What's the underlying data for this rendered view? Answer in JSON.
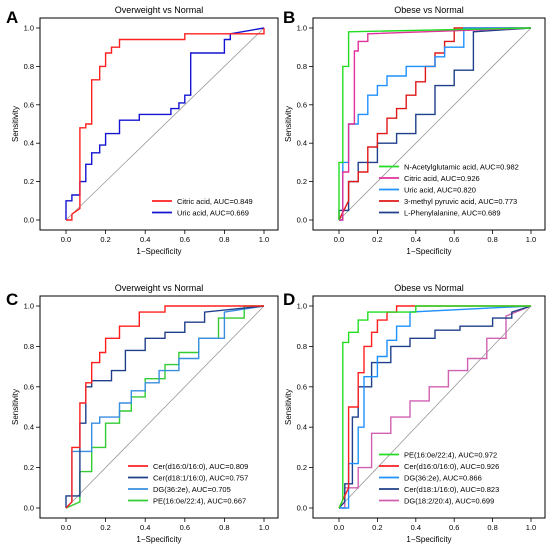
{
  "figure": {
    "panel_letters": [
      "A",
      "B",
      "C",
      "D"
    ]
  },
  "chart_data": [
    {
      "type": "line",
      "panel": "A",
      "title": "Overweight vs Normal",
      "xlabel": "1−Specificity",
      "ylabel": "Sensitivity",
      "xlim": [
        0,
        1
      ],
      "ylim": [
        0,
        1
      ],
      "ticks": [
        "0.0",
        "0.2",
        "0.4",
        "0.6",
        "0.8",
        "1.0"
      ],
      "diagonal": true,
      "legend_position": "bottom-right",
      "series": [
        {
          "name": "Citric acid, AUC=0.849",
          "color": "#ff2020",
          "x": [
            0,
            0.03,
            0.03,
            0.07,
            0.07,
            0.1,
            0.1,
            0.13,
            0.13,
            0.17,
            0.17,
            0.2,
            0.2,
            0.23,
            0.23,
            0.27,
            0.27,
            0.3,
            0.3,
            0.6,
            0.6,
            1.0,
            1.0
          ],
          "y": [
            0,
            0,
            0.03,
            0.06,
            0.48,
            0.48,
            0.5,
            0.5,
            0.73,
            0.73,
            0.8,
            0.8,
            0.87,
            0.87,
            0.9,
            0.9,
            0.94,
            0.94,
            0.94,
            0.94,
            0.97,
            0.97,
            1.0
          ]
        },
        {
          "name": "Uric acid, AUC=0.669",
          "color": "#1414d2",
          "x": [
            0,
            0,
            0.03,
            0.03,
            0.07,
            0.07,
            0.1,
            0.1,
            0.13,
            0.13,
            0.17,
            0.17,
            0.2,
            0.2,
            0.27,
            0.27,
            0.37,
            0.37,
            0.53,
            0.53,
            0.57,
            0.57,
            0.6,
            0.6,
            0.63,
            0.63,
            0.8,
            0.8,
            0.83,
            0.83,
            1.0
          ],
          "y": [
            0,
            0.1,
            0.1,
            0.13,
            0.13,
            0.2,
            0.2,
            0.29,
            0.29,
            0.35,
            0.35,
            0.39,
            0.39,
            0.45,
            0.45,
            0.52,
            0.52,
            0.55,
            0.55,
            0.58,
            0.58,
            0.61,
            0.61,
            0.65,
            0.65,
            0.87,
            0.87,
            0.94,
            0.94,
            0.97,
            1.0
          ]
        }
      ]
    },
    {
      "type": "line",
      "panel": "B",
      "title": "Obese vs Normal",
      "xlabel": "1−Specificity",
      "ylabel": "Sensitivity",
      "xlim": [
        0,
        1
      ],
      "ylim": [
        0,
        1
      ],
      "ticks": [
        "0.0",
        "0.2",
        "0.4",
        "0.6",
        "0.8",
        "1.0"
      ],
      "diagonal": true,
      "legend_position": "bottom-right",
      "series": [
        {
          "name": "N-Acetylglutamic acid, AUC=0.982",
          "color": "#22dd22",
          "x": [
            0,
            0,
            0.02,
            0.02,
            0.05,
            0.05,
            1.0
          ],
          "y": [
            0,
            0.3,
            0.3,
            0.8,
            0.8,
            0.98,
            1.0
          ]
        },
        {
          "name": "Citric acid, AUC=0.926",
          "color": "#e0309a",
          "x": [
            0,
            0.02,
            0.02,
            0.05,
            0.05,
            0.08,
            0.08,
            0.1,
            0.1,
            0.15,
            0.15,
            1.0
          ],
          "y": [
            0,
            0,
            0.25,
            0.25,
            0.5,
            0.5,
            0.88,
            0.88,
            0.93,
            0.93,
            0.97,
            1.0
          ]
        },
        {
          "name": "Uric acid, AUC=0.820",
          "color": "#1e90ff",
          "x": [
            0,
            0.02,
            0.02,
            0.05,
            0.05,
            0.1,
            0.1,
            0.15,
            0.15,
            0.2,
            0.2,
            0.25,
            0.25,
            0.35,
            0.35,
            0.5,
            0.5,
            0.55,
            0.55,
            0.65,
            0.65,
            1.0
          ],
          "y": [
            0,
            0,
            0.3,
            0.3,
            0.5,
            0.5,
            0.55,
            0.55,
            0.65,
            0.65,
            0.7,
            0.7,
            0.75,
            0.75,
            0.8,
            0.8,
            0.85,
            0.85,
            0.9,
            0.9,
            1.0,
            1.0
          ]
        },
        {
          "name": "3-methyl pyruvic acid, AUC=0.773",
          "color": "#e01818",
          "x": [
            0,
            0.05,
            0.05,
            0.1,
            0.1,
            0.15,
            0.15,
            0.2,
            0.2,
            0.25,
            0.25,
            0.3,
            0.3,
            0.35,
            0.35,
            0.4,
            0.4,
            0.45,
            0.45,
            0.5,
            0.5,
            0.55,
            0.55,
            0.6,
            0.6,
            1.0
          ],
          "y": [
            0,
            0.1,
            0.2,
            0.2,
            0.25,
            0.25,
            0.38,
            0.38,
            0.45,
            0.45,
            0.53,
            0.53,
            0.58,
            0.58,
            0.65,
            0.65,
            0.72,
            0.72,
            0.8,
            0.8,
            0.87,
            0.87,
            0.93,
            0.93,
            1.0,
            1.0
          ]
        },
        {
          "name": "L-Phenylalanine, AUC=0.689",
          "color": "#1f3f8a",
          "x": [
            0,
            0,
            0.05,
            0.05,
            0.1,
            0.1,
            0.2,
            0.2,
            0.3,
            0.3,
            0.4,
            0.4,
            0.5,
            0.5,
            0.6,
            0.6,
            0.7,
            0.7,
            1.0
          ],
          "y": [
            0,
            0.05,
            0.05,
            0.2,
            0.2,
            0.3,
            0.3,
            0.4,
            0.4,
            0.45,
            0.45,
            0.55,
            0.55,
            0.7,
            0.7,
            0.78,
            0.78,
            0.98,
            1.0
          ]
        }
      ]
    },
    {
      "type": "line",
      "panel": "C",
      "title": "Overweight vs Normal",
      "xlabel": "1−Specificity",
      "ylabel": "Sensitivity",
      "xlim": [
        0,
        1
      ],
      "ylim": [
        0,
        1
      ],
      "ticks": [
        "0.0",
        "0.2",
        "0.4",
        "0.6",
        "0.8",
        "1.0"
      ],
      "diagonal": true,
      "legend_position": "bottom-right",
      "series": [
        {
          "name": "Cer(d16:0/16:0), AUC=0.809",
          "color": "#ff1f1f",
          "x": [
            0,
            0.03,
            0.03,
            0.07,
            0.07,
            0.1,
            0.1,
            0.13,
            0.13,
            0.17,
            0.17,
            0.2,
            0.2,
            0.27,
            0.27,
            0.37,
            0.37,
            0.5,
            0.5,
            0.8,
            0.8,
            1.0
          ],
          "y": [
            0,
            0.03,
            0.3,
            0.3,
            0.52,
            0.52,
            0.62,
            0.62,
            0.72,
            0.72,
            0.77,
            0.77,
            0.84,
            0.84,
            0.9,
            0.9,
            0.97,
            0.97,
            1.0,
            1.0,
            1.0,
            1.0
          ]
        },
        {
          "name": "Cer(d18:1/16:0), AUC=0.757",
          "color": "#1f3f8a",
          "x": [
            0,
            0,
            0.07,
            0.07,
            0.1,
            0.1,
            0.13,
            0.13,
            0.23,
            0.23,
            0.3,
            0.3,
            0.4,
            0.4,
            0.5,
            0.5,
            0.6,
            0.6,
            0.7,
            0.7,
            1.0
          ],
          "y": [
            0,
            0.06,
            0.06,
            0.42,
            0.42,
            0.6,
            0.6,
            0.63,
            0.63,
            0.68,
            0.68,
            0.78,
            0.78,
            0.84,
            0.84,
            0.87,
            0.87,
            0.92,
            0.92,
            0.97,
            1.0
          ]
        },
        {
          "name": "DG(36:2e), AUC=0.705",
          "color": "#3a8ee0",
          "x": [
            0,
            0.03,
            0.03,
            0.13,
            0.13,
            0.17,
            0.17,
            0.27,
            0.27,
            0.33,
            0.33,
            0.4,
            0.4,
            0.47,
            0.47,
            0.57,
            0.57,
            0.67,
            0.67,
            0.8,
            0.8,
            1.0
          ],
          "y": [
            0,
            0.03,
            0.28,
            0.28,
            0.42,
            0.42,
            0.45,
            0.45,
            0.52,
            0.52,
            0.58,
            0.58,
            0.62,
            0.62,
            0.68,
            0.68,
            0.74,
            0.74,
            0.84,
            0.84,
            0.97,
            1.0
          ]
        },
        {
          "name": "PE(16:0e/22:4), AUC=0.667",
          "color": "#33cc33",
          "x": [
            0,
            0.07,
            0.07,
            0.13,
            0.13,
            0.2,
            0.2,
            0.27,
            0.27,
            0.33,
            0.33,
            0.4,
            0.4,
            0.5,
            0.5,
            0.57,
            0.57,
            0.67,
            0.67,
            0.77,
            0.77,
            0.9,
            0.9,
            1.0
          ],
          "y": [
            0,
            0.03,
            0.18,
            0.18,
            0.3,
            0.3,
            0.42,
            0.42,
            0.48,
            0.48,
            0.55,
            0.55,
            0.64,
            0.64,
            0.71,
            0.71,
            0.77,
            0.77,
            0.84,
            0.84,
            0.94,
            0.94,
            1.0,
            1.0
          ]
        }
      ]
    },
    {
      "type": "line",
      "panel": "D",
      "title": "Obese vs Normal",
      "xlabel": "1−Specificity",
      "ylabel": "Sensitivity",
      "xlim": [
        0,
        1
      ],
      "ylim": [
        0,
        1
      ],
      "ticks": [
        "0.0",
        "0.2",
        "0.4",
        "0.6",
        "0.8",
        "1.0"
      ],
      "diagonal": true,
      "legend_position": "bottom-right",
      "series": [
        {
          "name": "PE(16:0e/22:4), AUC=0.972",
          "color": "#22dd22",
          "x": [
            0,
            0.02,
            0.02,
            0.05,
            0.05,
            0.1,
            0.1,
            0.15,
            0.15,
            0.4,
            0.4,
            1.0
          ],
          "y": [
            0,
            0.04,
            0.82,
            0.82,
            0.87,
            0.87,
            0.93,
            0.93,
            0.97,
            0.97,
            1.0,
            1.0
          ]
        },
        {
          "name": "Cer(d16:0/16:0), AUC=0.926",
          "color": "#ff1f1f",
          "x": [
            0,
            0.05,
            0.05,
            0.1,
            0.1,
            0.13,
            0.13,
            0.17,
            0.17,
            0.2,
            0.2,
            0.25,
            0.25,
            0.3,
            0.3,
            1.0
          ],
          "y": [
            0,
            0.1,
            0.5,
            0.5,
            0.67,
            0.67,
            0.8,
            0.8,
            0.87,
            0.87,
            0.93,
            0.93,
            0.97,
            0.97,
            1.0,
            1.0
          ]
        },
        {
          "name": "DG(36:2e), AUC=0.866",
          "color": "#1e90ff",
          "x": [
            0,
            0.05,
            0.05,
            0.1,
            0.1,
            0.13,
            0.13,
            0.2,
            0.2,
            0.25,
            0.25,
            0.3,
            0.3,
            0.37,
            0.37,
            1.0
          ],
          "y": [
            0,
            0,
            0.22,
            0.22,
            0.4,
            0.4,
            0.65,
            0.65,
            0.75,
            0.75,
            0.83,
            0.83,
            0.9,
            0.9,
            0.97,
            1.0
          ]
        },
        {
          "name": "Cer(d18:1/16:0), AUC=0.823",
          "color": "#1f3f8a",
          "x": [
            0,
            0.03,
            0.03,
            0.07,
            0.07,
            0.1,
            0.1,
            0.17,
            0.17,
            0.27,
            0.27,
            0.37,
            0.37,
            0.5,
            0.5,
            0.63,
            0.63,
            0.8,
            0.8,
            0.9,
            0.9,
            1.0
          ],
          "y": [
            0,
            0.03,
            0.12,
            0.12,
            0.45,
            0.45,
            0.6,
            0.6,
            0.72,
            0.72,
            0.8,
            0.8,
            0.84,
            0.84,
            0.88,
            0.88,
            0.9,
            0.9,
            0.94,
            0.94,
            0.97,
            1.0
          ]
        },
        {
          "name": "DG(18:2/20:4), AUC=0.699",
          "color": "#d060b0",
          "x": [
            0,
            0.03,
            0.03,
            0.1,
            0.1,
            0.17,
            0.17,
            0.27,
            0.27,
            0.37,
            0.37,
            0.47,
            0.47,
            0.57,
            0.57,
            0.67,
            0.67,
            0.77,
            0.77,
            0.87,
            0.87,
            1.0
          ],
          "y": [
            0,
            0,
            0.1,
            0.1,
            0.2,
            0.2,
            0.37,
            0.37,
            0.45,
            0.45,
            0.53,
            0.53,
            0.6,
            0.6,
            0.68,
            0.68,
            0.74,
            0.74,
            0.84,
            0.84,
            0.95,
            1.0
          ]
        }
      ]
    }
  ]
}
